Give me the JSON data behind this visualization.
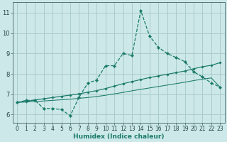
{
  "xlabel": "Humidex (Indice chaleur)",
  "bg_color": "#cce8e8",
  "grid_color": "#aacccc",
  "line_color": "#1a7a6a",
  "xlim": [
    -0.5,
    23.5
  ],
  "ylim": [
    5.6,
    11.5
  ],
  "yticks": [
    6,
    7,
    8,
    9,
    10,
    11
  ],
  "xticks": [
    0,
    1,
    2,
    3,
    4,
    5,
    6,
    7,
    8,
    9,
    10,
    11,
    12,
    13,
    14,
    15,
    16,
    17,
    18,
    19,
    20,
    21,
    22,
    23
  ],
  "series1_x": [
    0,
    1,
    2,
    3,
    4,
    5,
    6,
    7,
    8,
    9,
    10,
    11,
    12,
    13,
    14,
    15,
    16,
    17,
    18,
    19,
    20,
    21,
    22,
    23
  ],
  "series1_y": [
    6.6,
    6.7,
    6.7,
    6.3,
    6.3,
    6.25,
    5.95,
    6.85,
    7.55,
    7.7,
    8.4,
    8.4,
    9.0,
    8.9,
    11.1,
    9.85,
    9.3,
    9.0,
    8.8,
    8.6,
    8.1,
    7.85,
    7.55,
    7.35
  ],
  "series2_x": [
    0,
    1,
    2,
    3,
    4,
    5,
    6,
    7,
    8,
    9,
    10,
    11,
    12,
    13,
    14,
    15,
    16,
    17,
    18,
    19,
    20,
    21,
    22,
    23
  ],
  "series2_y": [
    6.6,
    6.65,
    6.72,
    6.78,
    6.84,
    6.9,
    6.96,
    7.02,
    7.1,
    7.18,
    7.28,
    7.4,
    7.52,
    7.62,
    7.72,
    7.82,
    7.9,
    7.98,
    8.06,
    8.14,
    8.25,
    8.35,
    8.42,
    8.55
  ],
  "series3_x": [
    0,
    1,
    2,
    3,
    4,
    5,
    6,
    7,
    8,
    9,
    10,
    11,
    12,
    13,
    14,
    15,
    16,
    17,
    18,
    19,
    20,
    21,
    22,
    23
  ],
  "series3_y": [
    6.6,
    6.62,
    6.64,
    6.67,
    6.7,
    6.73,
    6.76,
    6.8,
    6.84,
    6.89,
    6.95,
    7.02,
    7.09,
    7.17,
    7.24,
    7.31,
    7.38,
    7.45,
    7.52,
    7.59,
    7.67,
    7.74,
    7.8,
    7.35
  ],
  "tick_fontsize": 5.5,
  "xlabel_fontsize": 6.5
}
